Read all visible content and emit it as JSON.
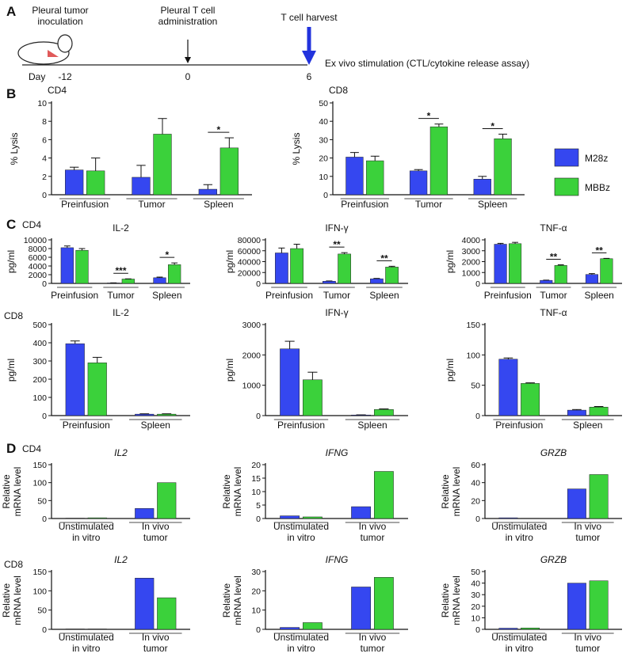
{
  "panel_labels": [
    "A",
    "B",
    "C",
    "D"
  ],
  "timeline": {
    "day_label": "Day",
    "events": [
      {
        "label": "Pleural tumor\ninoculation",
        "day": -12
      },
      {
        "label": "Pleural T cell\nadministration",
        "day": 0
      },
      {
        "label": "T cell harvest",
        "day": 6
      }
    ],
    "note": "Ex vivo stimulation (CTL/cytokine release assay)"
  },
  "legend": [
    {
      "name": "M28z",
      "color": "#3547f0"
    },
    {
      "name": "MBBz",
      "color": "#3bd13b"
    }
  ],
  "row_labels": [
    "CD4",
    "CD8",
    "CD4",
    "CD8"
  ],
  "chart_data": [
    {
      "type": "bar",
      "title": "CD4",
      "ylabel": "% Lysis",
      "categories": [
        "Preinfusion",
        "Tumor",
        "Spleen"
      ],
      "series": [
        {
          "values": [
            2.7,
            1.9,
            0.6
          ],
          "errors": [
            0.3,
            1.3,
            0.5
          ]
        },
        {
          "values": [
            2.6,
            6.6,
            5.1
          ],
          "errors": [
            1.4,
            1.7,
            1.1
          ]
        }
      ],
      "ylim": [
        0,
        10
      ],
      "yticks": [
        0,
        2,
        4,
        6,
        8,
        10
      ],
      "significance": [
        null,
        null,
        "*"
      ]
    },
    {
      "type": "bar",
      "title": "CD8",
      "ylabel": "% Lysis",
      "categories": [
        "Preinfusion",
        "Tumor",
        "Spleen"
      ],
      "series": [
        {
          "values": [
            20.5,
            13,
            8.5
          ],
          "errors": [
            2.5,
            0.7,
            1.5
          ]
        },
        {
          "values": [
            18.5,
            37,
            30.5
          ],
          "errors": [
            2.5,
            1.5,
            2.5
          ]
        }
      ],
      "ylim": [
        0,
        50
      ],
      "yticks": [
        0,
        10,
        20,
        30,
        40,
        50
      ],
      "significance": [
        null,
        "*",
        "*"
      ]
    },
    {
      "type": "bar",
      "title": "IL-2",
      "ylabel": "pg/ml",
      "categories": [
        "Preinfusion",
        "Tumor",
        "Spleen"
      ],
      "series": [
        {
          "values": [
            8200,
            100,
            1300
          ],
          "errors": [
            400,
            30,
            150
          ]
        },
        {
          "values": [
            7600,
            1000,
            4300
          ],
          "errors": [
            400,
            50,
            400
          ]
        }
      ],
      "ylim": [
        0,
        10000
      ],
      "yticks": [
        0,
        2000,
        4000,
        6000,
        8000,
        10000
      ],
      "significance": [
        null,
        "***",
        "*"
      ]
    },
    {
      "type": "bar",
      "title": "IFN-γ",
      "ylabel": "pg/ml",
      "categories": [
        "Preinfusion",
        "Tumor",
        "Spleen"
      ],
      "series": [
        {
          "values": [
            56000,
            4000,
            8500
          ],
          "errors": [
            9000,
            500,
            700
          ]
        },
        {
          "values": [
            64000,
            54000,
            30000
          ],
          "errors": [
            8000,
            2500,
            1500
          ]
        }
      ],
      "ylim": [
        0,
        80000
      ],
      "yticks": [
        0,
        20000,
        40000,
        60000,
        80000
      ],
      "significance": [
        null,
        "**",
        "**"
      ]
    },
    {
      "type": "bar",
      "title": "TNF-α",
      "ylabel": "pg/ml",
      "categories": [
        "Preinfusion",
        "Tumor",
        "Spleen"
      ],
      "series": [
        {
          "values": [
            3600,
            280,
            820
          ],
          "errors": [
            80,
            20,
            80
          ]
        },
        {
          "values": [
            3650,
            1650,
            2270
          ],
          "errors": [
            120,
            60,
            30
          ]
        }
      ],
      "ylim": [
        0,
        4000
      ],
      "yticks": [
        0,
        1000,
        2000,
        3000,
        4000
      ],
      "significance": [
        null,
        "**",
        "**"
      ]
    },
    {
      "type": "bar",
      "title": "IL-2",
      "ylabel": "pg/ml",
      "categories": [
        "Preinfusion",
        "Spleen"
      ],
      "series": [
        {
          "values": [
            395,
            8
          ],
          "errors": [
            15,
            2
          ]
        },
        {
          "values": [
            290,
            8
          ],
          "errors": [
            30,
            2
          ]
        }
      ],
      "ylim": [
        0,
        500
      ],
      "yticks": [
        0,
        100,
        200,
        300,
        400,
        500
      ]
    },
    {
      "type": "bar",
      "title": "IFN-γ",
      "ylabel": "pg/ml",
      "categories": [
        "Preinfusion",
        "Spleen"
      ],
      "series": [
        {
          "values": [
            2200,
            20
          ],
          "errors": [
            250,
            5
          ]
        },
        {
          "values": [
            1180,
            200
          ],
          "errors": [
            250,
            20
          ]
        }
      ],
      "ylim": [
        0,
        3000
      ],
      "yticks": [
        0,
        1000,
        2000,
        3000
      ]
    },
    {
      "type": "bar",
      "title": "TNF-α",
      "ylabel": "pg/ml",
      "categories": [
        "Preinfusion",
        "Spleen"
      ],
      "series": [
        {
          "values": [
            93,
            9
          ],
          "errors": [
            2,
            1
          ]
        },
        {
          "values": [
            53,
            14
          ],
          "errors": [
            1,
            1
          ]
        }
      ],
      "ylim": [
        0,
        150
      ],
      "yticks": [
        0,
        50,
        100,
        150
      ]
    },
    {
      "type": "bar",
      "title": "IL2",
      "italic_title": true,
      "ylabel": "Relative\nmRNA level",
      "categories": [
        "Unstimulated\nin vitro",
        "In vivo\ntumor"
      ],
      "series": [
        {
          "values": [
            1,
            28
          ]
        },
        {
          "values": [
            2,
            100
          ]
        }
      ],
      "ylim": [
        0,
        150
      ],
      "yticks": [
        0,
        50,
        100,
        150
      ]
    },
    {
      "type": "bar",
      "title": "IFNG",
      "italic_title": true,
      "ylabel": "Relative\nmRNA level",
      "categories": [
        "Unstimulated\nin vitro",
        "In vivo\ntumor"
      ],
      "series": [
        {
          "values": [
            1,
            4.4
          ]
        },
        {
          "values": [
            0.6,
            17.5
          ]
        }
      ],
      "ylim": [
        0,
        20
      ],
      "yticks": [
        0,
        5,
        10,
        15,
        20
      ]
    },
    {
      "type": "bar",
      "title": "GRZB",
      "italic_title": true,
      "ylabel": "Relative\nmRNA level",
      "categories": [
        "Unstimulated\nin vitro",
        "In vivo\ntumor"
      ],
      "series": [
        {
          "values": [
            0.8,
            33
          ]
        },
        {
          "values": [
            0.3,
            49
          ]
        }
      ],
      "ylim": [
        0,
        60
      ],
      "yticks": [
        0,
        20,
        40,
        60
      ]
    },
    {
      "type": "bar",
      "title": "IL2",
      "italic_title": true,
      "ylabel": "Relative\nmRNA level",
      "categories": [
        "Unstimulated\nin vitro",
        "In vivo\ntumor"
      ],
      "series": [
        {
          "values": [
            1,
            133
          ]
        },
        {
          "values": [
            1,
            82
          ]
        }
      ],
      "ylim": [
        0,
        150
      ],
      "yticks": [
        0,
        50,
        100,
        150
      ]
    },
    {
      "type": "bar",
      "title": "IFNG",
      "italic_title": true,
      "ylabel": "Relative\nmRNA level",
      "categories": [
        "Unstimulated\nin vitro",
        "In vivo\ntumor"
      ],
      "series": [
        {
          "values": [
            1,
            22
          ]
        },
        {
          "values": [
            3.5,
            27
          ]
        }
      ],
      "ylim": [
        0,
        30
      ],
      "yticks": [
        0,
        10,
        20,
        30
      ]
    },
    {
      "type": "bar",
      "title": "GRZB",
      "italic_title": true,
      "ylabel": "Relative\nmRNA level",
      "categories": [
        "Unstimulated\nin vitro",
        "In vivo\ntumor"
      ],
      "series": [
        {
          "values": [
            1,
            40
          ]
        },
        {
          "values": [
            1.2,
            42
          ]
        }
      ],
      "ylim": [
        0,
        50
      ],
      "yticks": [
        0,
        10,
        20,
        30,
        40,
        50
      ]
    }
  ]
}
